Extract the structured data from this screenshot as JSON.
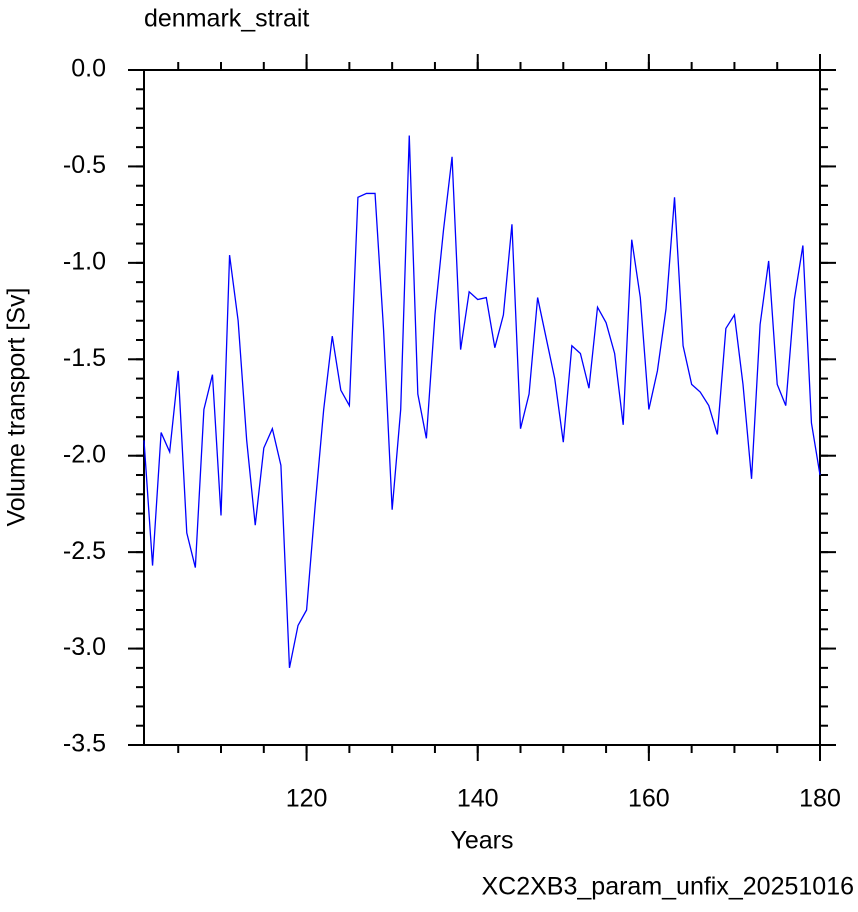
{
  "chart_data": {
    "type": "line",
    "title": "denmark_strait",
    "x_label": "Years",
    "y_label": "Volume transport [Sv]",
    "annotation": "XC2XB3_param_unfix_20251016",
    "x": [
      101,
      102,
      103,
      104,
      105,
      106,
      107,
      108,
      109,
      110,
      111,
      112,
      113,
      114,
      115,
      116,
      117,
      118,
      119,
      120,
      121,
      122,
      123,
      124,
      125,
      126,
      127,
      128,
      129,
      130,
      131,
      132,
      133,
      134,
      135,
      136,
      137,
      138,
      139,
      140,
      141,
      142,
      143,
      144,
      145,
      146,
      147,
      148,
      149,
      150,
      151,
      152,
      153,
      154,
      155,
      156,
      157,
      158,
      159,
      160,
      161,
      162,
      163,
      164,
      165,
      166,
      167,
      168,
      169,
      170,
      171,
      172,
      173,
      174,
      175,
      176,
      177,
      178,
      179,
      180
    ],
    "series": [
      {
        "name": "denmark_strait",
        "color": "#0000ff",
        "values": [
          -1.92,
          -2.57,
          -1.88,
          -1.98,
          -1.56,
          -2.4,
          -2.58,
          -1.76,
          -1.58,
          -2.31,
          -0.96,
          -1.3,
          -1.92,
          -2.36,
          -1.96,
          -1.86,
          -2.05,
          -3.1,
          -2.88,
          -2.8,
          -2.26,
          -1.76,
          -1.38,
          -1.66,
          -1.74,
          -0.66,
          -0.64,
          -0.64,
          -1.35,
          -2.28,
          -1.76,
          -0.34,
          -1.68,
          -1.91,
          -1.27,
          -0.83,
          -0.45,
          -1.45,
          -1.15,
          -1.19,
          -1.18,
          -1.44,
          -1.27,
          -0.8,
          -1.86,
          -1.68,
          -1.18,
          -1.39,
          -1.6,
          -1.93,
          -1.43,
          -1.47,
          -1.65,
          -1.23,
          -1.31,
          -1.47,
          -1.84,
          -0.88,
          -1.18,
          -1.76,
          -1.56,
          -1.24,
          -0.66,
          -1.43,
          -1.63,
          -1.67,
          -1.74,
          -1.89,
          -1.34,
          -1.27,
          -1.63,
          -2.12,
          -1.32,
          -0.99,
          -1.63,
          -1.74,
          -1.19,
          -0.91,
          -1.83,
          -2.1
        ]
      }
    ],
    "xlim": [
      101,
      180
    ],
    "xticks": [
      120,
      140,
      160,
      180
    ],
    "ylim": [
      -3.5,
      0
    ],
    "yticks": [
      {
        "value": 0,
        "label": "0.0"
      },
      -0.5,
      {
        "value": -1,
        "label": "-1.0"
      },
      -1.5,
      {
        "value": -2,
        "label": "-2.0"
      },
      -2.5,
      {
        "value": -3,
        "label": "-3.0"
      },
      -3.5
    ],
    "annotation_color": "#0000ff"
  }
}
